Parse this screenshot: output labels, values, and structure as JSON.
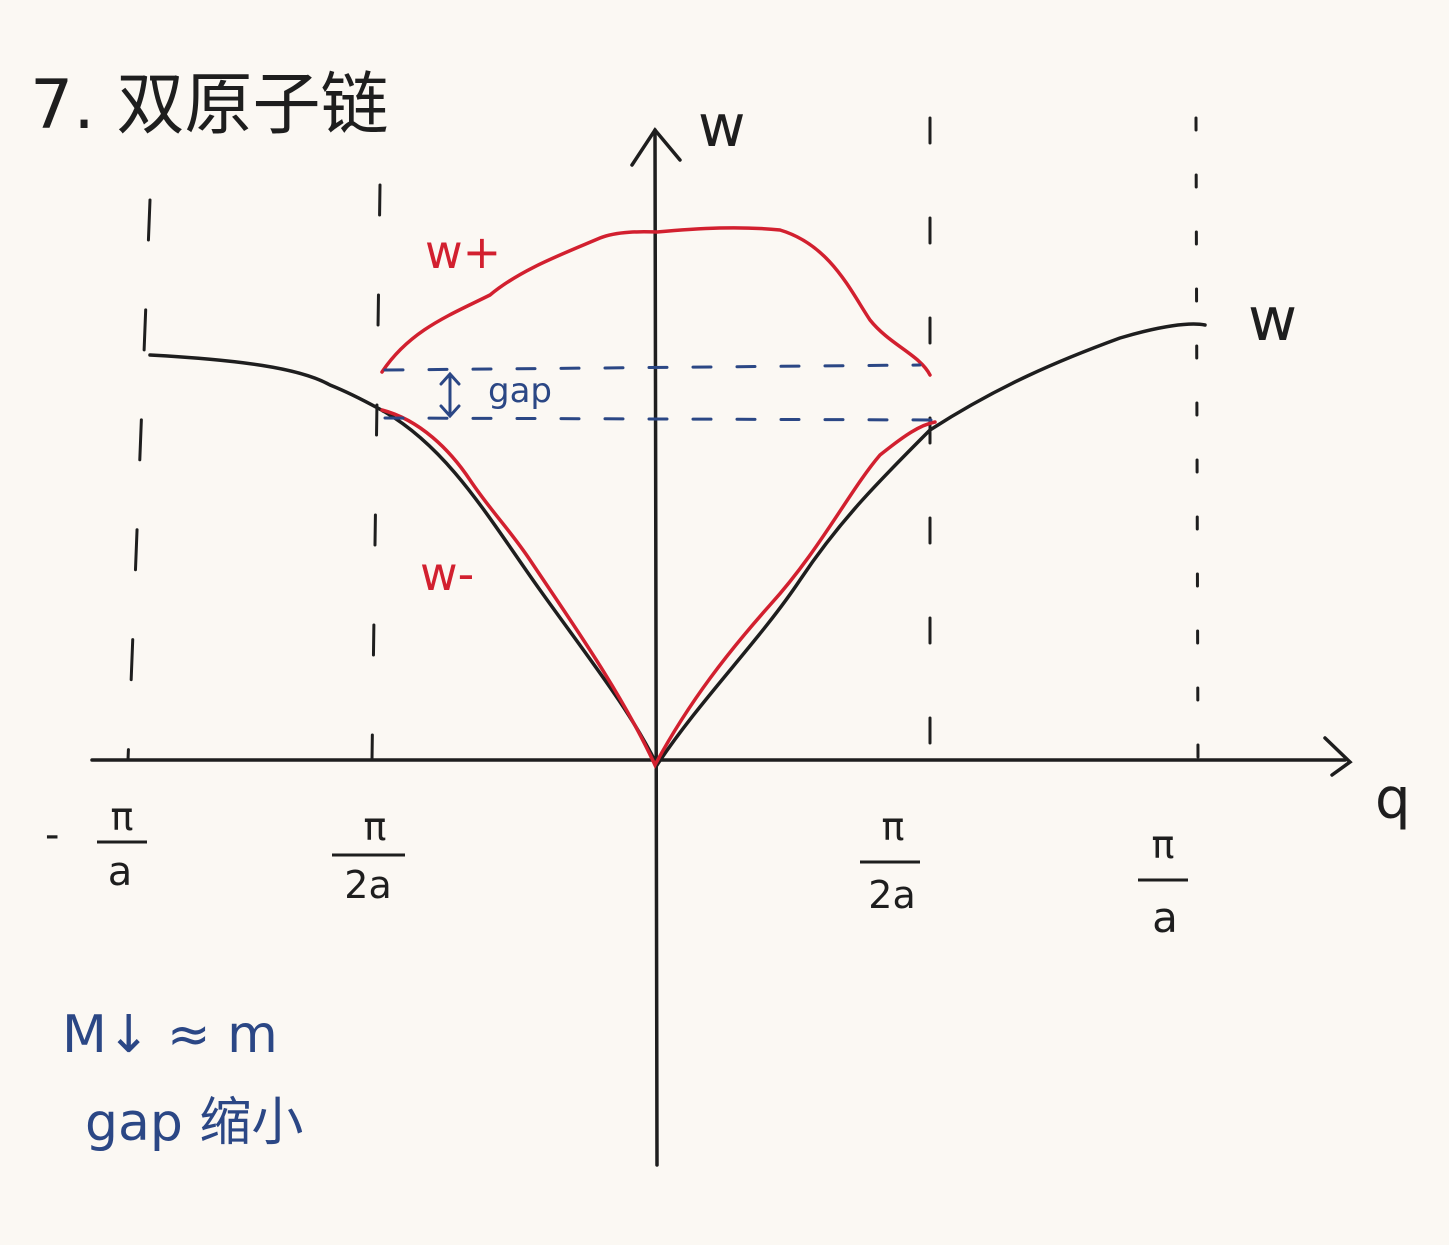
{
  "title": "7. 双原子链",
  "axes": {
    "y_label": "w",
    "x_label": "q"
  },
  "curves": {
    "upper": "w+",
    "lower": "w-",
    "original": "w"
  },
  "gap_label": "gap",
  "ticks": [
    {
      "sign": "-",
      "num": "π",
      "den": "a"
    },
    {
      "sign": "",
      "num": "π",
      "den": "2a"
    },
    {
      "sign": "",
      "num": "π",
      "den": "2a"
    },
    {
      "sign": "",
      "num": "π",
      "den": "a"
    }
  ],
  "notes": {
    "line1": "M↓ ≈ m",
    "line2": "gap 缩小"
  },
  "colors": {
    "ink": "#1e1e1e",
    "red": "#d2202f",
    "blue": "#2b4785",
    "paper": "#fbf8f3"
  }
}
